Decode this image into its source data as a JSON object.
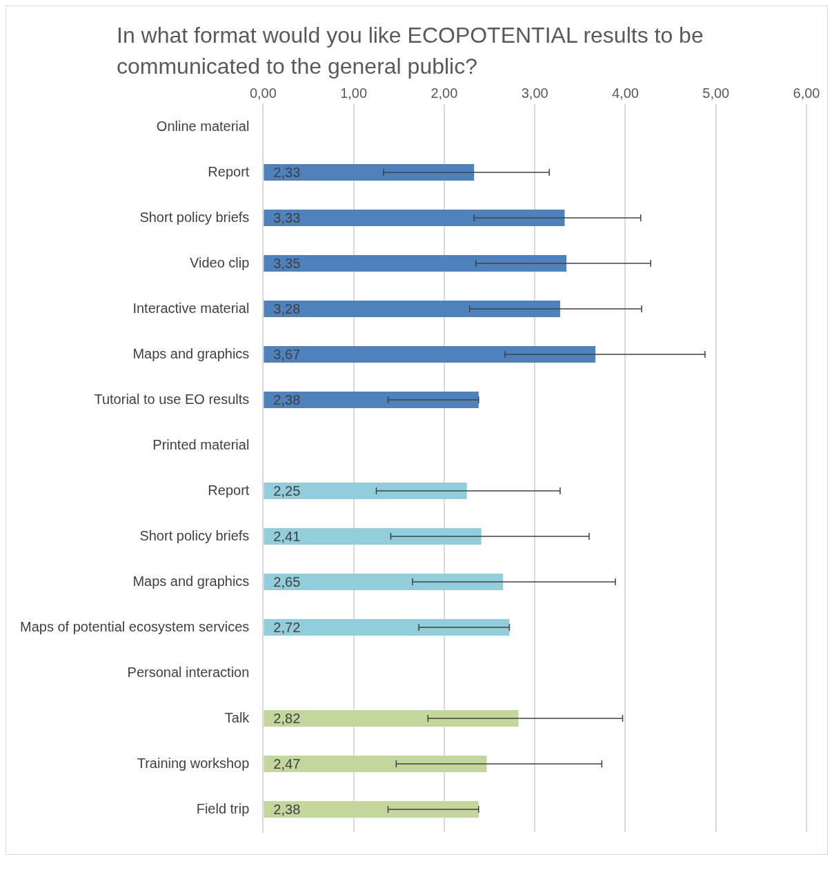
{
  "chart_data": {
    "type": "bar",
    "orientation": "horizontal",
    "title": "In what format would you like ECOPOTENTIAL results to be communicated to the general public?",
    "categories": [
      "Online material",
      "Report",
      "Short policy briefs",
      "Video clip",
      "Interactive material",
      "Maps and graphics",
      "Tutorial to use EO results",
      "Printed material",
      "Report",
      "Short policy briefs",
      "Maps and graphics",
      "Maps of potential ecosystem services",
      "Personal interaction",
      "Talk",
      "Training workshop",
      "Field trip"
    ],
    "values": [
      null,
      2.33,
      3.33,
      3.35,
      3.28,
      3.67,
      2.38,
      null,
      2.25,
      2.41,
      2.65,
      2.72,
      null,
      2.82,
      2.47,
      2.38
    ],
    "colors": [
      "#4f81bd",
      "#4f81bd",
      "#4f81bd",
      "#4f81bd",
      "#4f81bd",
      "#4f81bd",
      "#4f81bd",
      "#92cddc",
      "#92cddc",
      "#92cddc",
      "#92cddc",
      "#92cddc",
      "#c3d69b",
      "#c3d69b",
      "#c3d69b",
      "#c3d69b"
    ],
    "value_labels": [
      null,
      "2,33",
      "3,33",
      "3,35",
      "3,28",
      "3,67",
      "2,38",
      null,
      "2,25",
      "2,41",
      "2,65",
      "2,72",
      null,
      "2,82",
      "2,47",
      "2,38"
    ],
    "errors": [
      null,
      [
        1.33,
        3.16
      ],
      [
        2.33,
        4.17
      ],
      [
        2.35,
        4.28
      ],
      [
        2.28,
        4.18
      ],
      [
        2.67,
        4.88
      ],
      [
        1.38,
        2.38
      ],
      null,
      [
        1.25,
        3.28
      ],
      [
        1.41,
        3.6
      ],
      [
        1.65,
        3.89
      ],
      [
        1.72,
        2.72
      ],
      null,
      [
        1.82,
        3.97
      ],
      [
        1.47,
        3.74
      ],
      [
        1.38,
        2.38
      ]
    ],
    "xlim": [
      0,
      6
    ],
    "xticks": [
      {
        "value": 0,
        "label": "0,00"
      },
      {
        "value": 1,
        "label": "1,00"
      },
      {
        "value": 2,
        "label": "2,00"
      },
      {
        "value": 3,
        "label": "3,00"
      },
      {
        "value": 4,
        "label": "4,00"
      },
      {
        "value": 5,
        "label": "5,00"
      },
      {
        "value": 6,
        "label": "6,00"
      }
    ],
    "grid": "x",
    "legend": false
  }
}
